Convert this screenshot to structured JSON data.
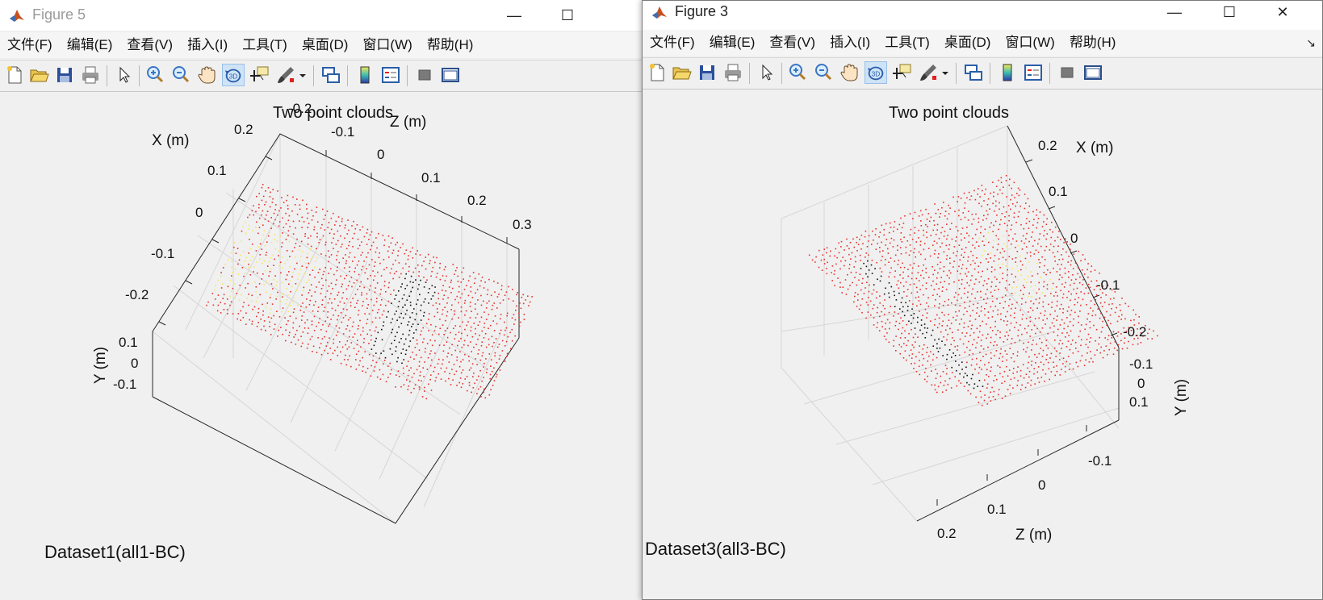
{
  "windows": [
    {
      "id": "figure5",
      "title": "Figure 5",
      "menu": [
        "文件(F)",
        "编辑(E)",
        "查看(V)",
        "插入(I)",
        "工具(T)",
        "桌面(D)",
        "窗口(W)",
        "帮助(H)"
      ],
      "plot_title": "Two point clouds",
      "x_axis_label": "X (m)",
      "y_axis_label": "Y (m)",
      "z_axis_label": "Z (m)",
      "x_ticks": [
        "0.2",
        "0.1",
        "0",
        "-0.1",
        "-0.2"
      ],
      "z_ticks": [
        "-0.2",
        "-0.1",
        "0",
        "0.1",
        "0.2",
        "0.3"
      ],
      "y_ticks": [
        "0.1",
        "0",
        "-0.1"
      ],
      "caption": "Dataset1(all1-BC)"
    },
    {
      "id": "figure3",
      "title": "Figure 3",
      "menu": [
        "文件(F)",
        "编辑(E)",
        "查看(V)",
        "插入(I)",
        "工具(T)",
        "桌面(D)",
        "窗口(W)",
        "帮助(H)"
      ],
      "plot_title": "Two point clouds",
      "x_axis_label": "X (m)",
      "y_axis_label": "Y (m)",
      "z_axis_label": "Z (m)",
      "x_ticks": [
        "0.2",
        "0.1",
        "0",
        "-0.1",
        "-0.2"
      ],
      "z_ticks": [
        "0.2",
        "0.1",
        "0",
        "-0.1"
      ],
      "y_ticks": [
        "-0.1",
        "0",
        "0.1"
      ],
      "caption": "Dataset3(all3-BC)"
    }
  ],
  "colors": {
    "point_red": "#e8302a",
    "point_yellow": "#f2e75a",
    "point_black": "#111111",
    "grid": "#d6d6d6",
    "axis": "#262626"
  }
}
